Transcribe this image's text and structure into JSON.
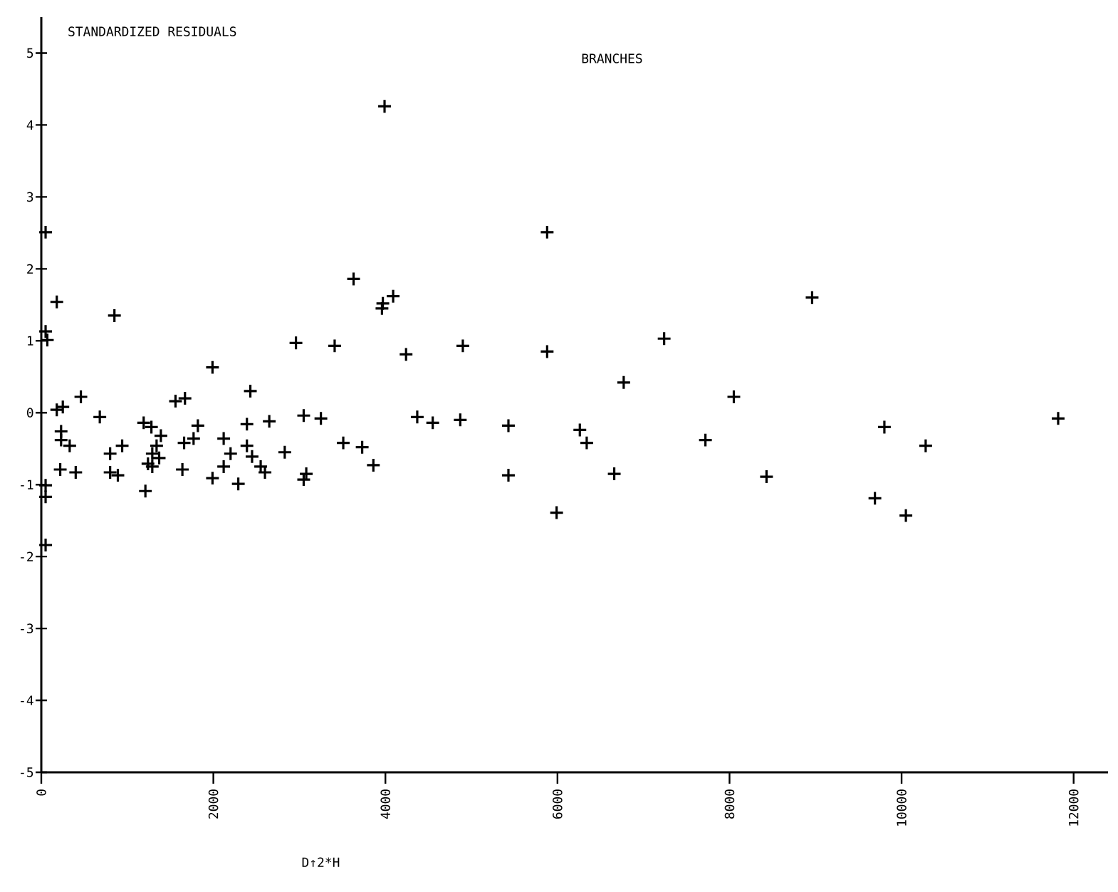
{
  "chart_data": {
    "type": "scatter",
    "title": "BRANCHES",
    "ylabel": "STANDARDIZED RESIDUALS",
    "xlabel": "D↑2*H",
    "xlim": [
      0,
      12400
    ],
    "ylim": [
      -5,
      5.5
    ],
    "xticks": [
      0,
      2000,
      4000,
      6000,
      8000,
      10000,
      12000
    ],
    "yticks": [
      -5,
      -4,
      -3,
      -2,
      -1,
      0,
      1,
      2,
      3,
      4,
      5
    ],
    "marker": "cross",
    "color": "#000000",
    "x": [
      180,
      250,
      460,
      680,
      1190,
      1280,
      1390,
      1340,
      1290,
      1370,
      1240,
      1290,
      1210,
      1560,
      1670,
      1820,
      1770,
      1660,
      1640,
      1990,
      2120,
      2200,
      2120,
      1990,
      2290,
      2390,
      2390,
      2450,
      2550,
      2600,
      2430,
      2650,
      2830,
      3050,
      3250,
      3080,
      3050,
      3510,
      3730,
      3860,
      4370,
      4550,
      4870,
      5430,
      5430,
      5990,
      230,
      230,
      330,
      800,
      940,
      800,
      890,
      220,
      400,
      50,
      50,
      50,
      50,
      50,
      70,
      180,
      850,
      2960,
      3410,
      4240,
      4900,
      5880,
      7240,
      6770,
      8050,
      5880,
      8960,
      3630,
      3960,
      3970,
      4090,
      3990,
      6260,
      6340,
      7720,
      9800,
      10280,
      11820,
      6660,
      8430,
      9690,
      10050
    ],
    "values": [
      0.04,
      0.08,
      0.22,
      -0.06,
      -0.14,
      -0.2,
      -0.32,
      -0.46,
      -0.57,
      -0.63,
      -0.71,
      -0.75,
      -1.09,
      0.16,
      0.2,
      -0.18,
      -0.36,
      -0.42,
      -0.79,
      0.63,
      -0.36,
      -0.57,
      -0.75,
      -0.91,
      -0.99,
      -0.16,
      -0.46,
      -0.61,
      -0.75,
      -0.83,
      0.3,
      -0.12,
      -0.55,
      -0.04,
      -0.08,
      -0.85,
      -0.93,
      -0.42,
      -0.48,
      -0.73,
      -0.06,
      -0.14,
      -0.1,
      -0.18,
      -0.87,
      -1.39,
      -0.26,
      -0.38,
      -0.46,
      -0.57,
      -0.46,
      -0.83,
      -0.87,
      -0.79,
      -0.83,
      -1.01,
      -1.17,
      -1.84,
      2.51,
      1.13,
      1.01,
      1.54,
      1.35,
      0.97,
      0.93,
      0.81,
      0.93,
      0.85,
      1.03,
      0.42,
      0.22,
      2.51,
      1.6,
      1.86,
      1.45,
      1.52,
      1.62,
      4.26,
      -0.24,
      -0.42,
      -0.38,
      -0.2,
      -0.46,
      -0.08,
      -0.85,
      -0.89,
      -1.19,
      -1.43
    ]
  }
}
